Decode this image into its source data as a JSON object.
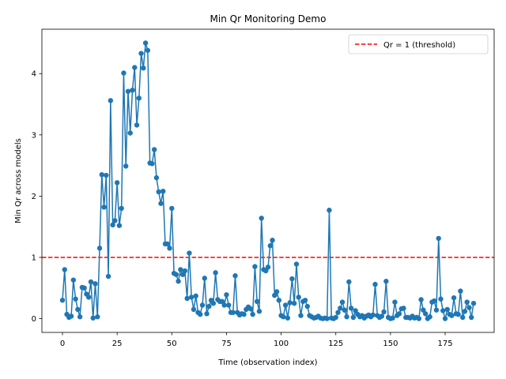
{
  "chart_data": {
    "type": "line",
    "title": "Min Qr Monitoring Demo",
    "x_label": "Time (observation index)",
    "y_label": "Min Qr across models",
    "x": [
      0,
      1,
      2,
      3,
      4,
      5,
      6,
      7,
      8,
      9,
      10,
      11,
      12,
      13,
      14,
      15,
      16,
      17,
      18,
      19,
      20,
      21,
      22,
      23,
      24,
      25,
      26,
      27,
      28,
      29,
      30,
      31,
      32,
      33,
      34,
      35,
      36,
      37,
      38,
      39,
      40,
      41,
      42,
      43,
      44,
      45,
      46,
      47,
      48,
      49,
      50,
      51,
      52,
      53,
      54,
      55,
      56,
      57,
      58,
      59,
      60,
      61,
      62,
      63,
      64,
      65,
      66,
      67,
      68,
      69,
      70,
      71,
      72,
      73,
      74,
      75,
      76,
      77,
      78,
      79,
      80,
      81,
      82,
      83,
      84,
      85,
      86,
      87,
      88,
      89,
      90,
      91,
      92,
      93,
      94,
      95,
      96,
      97,
      98,
      99,
      100,
      101,
      102,
      103,
      104,
      105,
      106,
      107,
      108,
      109,
      110,
      111,
      112,
      113,
      114,
      115,
      116,
      117,
      118,
      119,
      120,
      121,
      122,
      123,
      124,
      125,
      126,
      127,
      128,
      129,
      130,
      131,
      132,
      133,
      134,
      135,
      136,
      137,
      138,
      139,
      140,
      141,
      142,
      143,
      144,
      145,
      146,
      147,
      148,
      149,
      150,
      151,
      152,
      153,
      154,
      155,
      156,
      157,
      158,
      159,
      160,
      161,
      162,
      163,
      164,
      165,
      166,
      167,
      168,
      169,
      170,
      171,
      172,
      173,
      174,
      175,
      176,
      177,
      178,
      179,
      180,
      181,
      182,
      183,
      184,
      185,
      186,
      187,
      188
    ],
    "values": [
      0.3,
      0.8,
      0.07,
      0.02,
      0.04,
      0.63,
      0.32,
      0.15,
      0.03,
      0.51,
      0.5,
      0.4,
      0.35,
      0.6,
      0.01,
      0.57,
      0.03,
      1.15,
      2.35,
      1.82,
      2.34,
      0.69,
      3.56,
      1.53,
      1.6,
      2.22,
      1.52,
      1.8,
      4.01,
      2.49,
      3.71,
      3.03,
      3.73,
      4.1,
      3.16,
      3.6,
      4.33,
      4.09,
      4.5,
      4.38,
      2.54,
      2.53,
      2.76,
      2.3,
      2.07,
      1.88,
      2.08,
      1.22,
      1.22,
      1.15,
      1.8,
      0.74,
      0.72,
      0.61,
      0.8,
      0.72,
      0.78,
      0.33,
      1.07,
      0.35,
      0.15,
      0.37,
      0.1,
      0.07,
      0.22,
      0.66,
      0.08,
      0.2,
      0.3,
      0.25,
      0.75,
      0.31,
      0.28,
      0.28,
      0.22,
      0.39,
      0.22,
      0.1,
      0.1,
      0.7,
      0.1,
      0.06,
      0.08,
      0.07,
      0.15,
      0.19,
      0.16,
      0.07,
      0.85,
      0.28,
      0.12,
      1.64,
      0.8,
      0.78,
      0.84,
      1.19,
      1.28,
      0.38,
      0.44,
      0.3,
      0.05,
      0.03,
      0.22,
      0.01,
      0.26,
      0.65,
      0.25,
      0.89,
      0.35,
      0.05,
      0.28,
      0.3,
      0.2,
      0.05,
      0.03,
      0.01,
      0.02,
      0.04,
      0.01,
      0.0,
      0.01,
      0.0,
      1.77,
      0.01,
      0.0,
      0.02,
      0.1,
      0.17,
      0.27,
      0.14,
      0.03,
      0.6,
      0.17,
      0.02,
      0.13,
      0.07,
      0.03,
      0.05,
      0.01,
      0.04,
      0.06,
      0.03,
      0.06,
      0.56,
      0.05,
      0.02,
      0.04,
      0.11,
      0.61,
      0.02,
      0.0,
      0.01,
      0.27,
      0.05,
      0.08,
      0.16,
      0.17,
      0.02,
      0.02,
      0.01,
      0.04,
      0.01,
      0.02,
      0.0,
      0.31,
      0.14,
      0.08,
      0.0,
      0.03,
      0.27,
      0.29,
      0.14,
      1.31,
      0.32,
      0.13,
      0.0,
      0.15,
      0.07,
      0.05,
      0.34,
      0.08,
      0.07,
      0.45,
      0.02,
      0.12,
      0.27,
      0.18,
      0.02,
      0.25
    ],
    "color": "#1f77b4",
    "threshold": {
      "value": 1,
      "label": "Qr = 1 (threshold)",
      "color": "#ff0000"
    },
    "legend": "upper right",
    "xlim": [
      -9.4,
      197.4
    ],
    "xticks": [
      0,
      25,
      50,
      75,
      100,
      125,
      150,
      175
    ],
    "ylim": [
      -0.225,
      4.725
    ],
    "yticks": [
      0,
      1,
      2,
      3,
      4
    ]
  }
}
